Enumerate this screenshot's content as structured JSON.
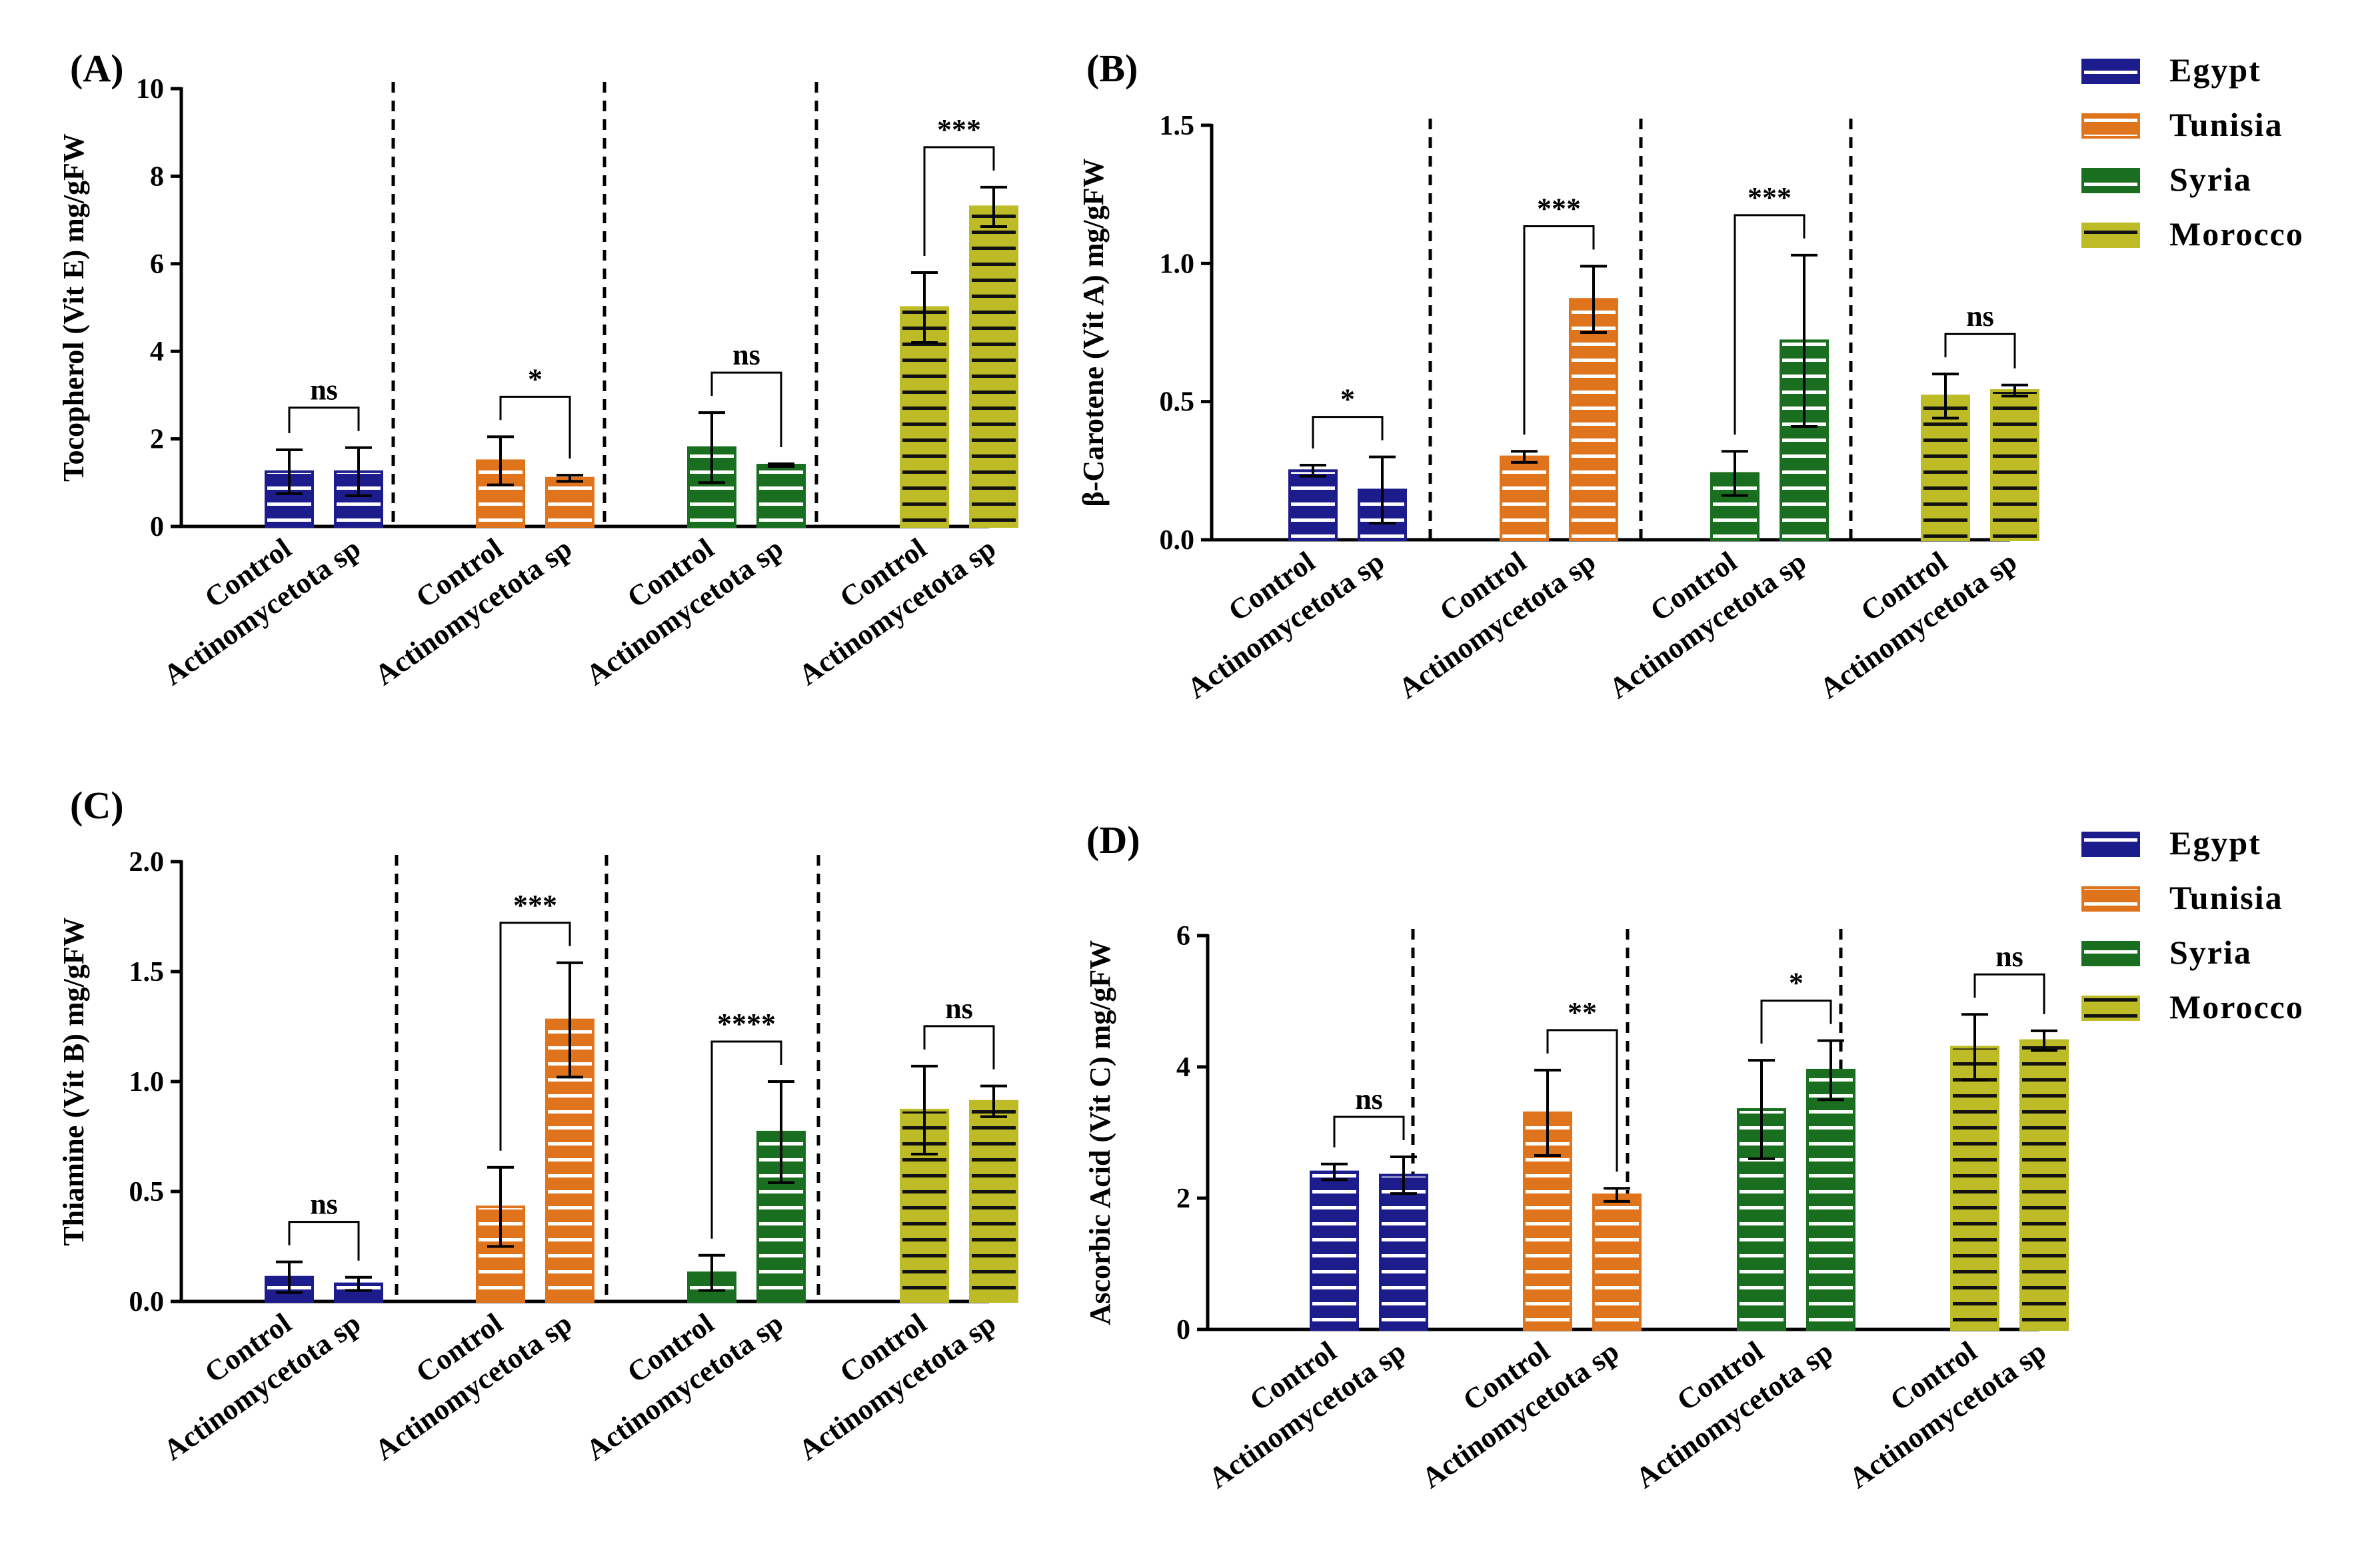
{
  "figure": {
    "group_labels": [
      "Control",
      "Actinomycetota sp"
    ],
    "countries": [
      {
        "name": "Egypt",
        "color": "#1c1c8c",
        "pattern": "stripes-white"
      },
      {
        "name": "Tunisia",
        "color": "#e0741c",
        "pattern": "stripes-white"
      },
      {
        "name": "Syria",
        "color": "#1a6e1f",
        "pattern": "stripes-white"
      },
      {
        "name": "Morocco",
        "color": "#bdbb26",
        "pattern": "stripes-black"
      }
    ]
  },
  "legends": [
    {
      "items": [
        "Egypt",
        "Tunisia",
        "Syria",
        "Morocco"
      ]
    },
    {
      "items": [
        "Egypt",
        "Tunisia",
        "Syria",
        "Morocco"
      ]
    }
  ],
  "chart_data": [
    {
      "type": "bar",
      "panel": "(A)",
      "ylabel": "Tocopherol (Vit E) mg/gFW",
      "ylim": [
        0,
        10
      ],
      "yticks": [
        0,
        2,
        4,
        6,
        8,
        10
      ],
      "ytick_labels": [
        "0",
        "2",
        "4",
        "6",
        "8",
        "10"
      ],
      "categories": [
        "Control",
        "Actinomycetota sp"
      ],
      "series": [
        {
          "name": "Egypt",
          "values": [
            1.25,
            1.25
          ],
          "errors": [
            0.5,
            0.55
          ],
          "significance": "ns"
        },
        {
          "name": "Tunisia",
          "values": [
            1.5,
            1.1
          ],
          "errors": [
            0.55,
            0.07
          ],
          "significance": "*"
        },
        {
          "name": "Syria",
          "values": [
            1.8,
            1.4
          ],
          "errors": [
            0.8,
            0.03
          ],
          "significance": "ns"
        },
        {
          "name": "Morocco",
          "values": [
            5.0,
            7.3
          ],
          "errors": [
            0.8,
            0.45
          ],
          "significance": "***"
        }
      ]
    },
    {
      "type": "bar",
      "panel": "(B)",
      "ylabel": "β-Carotene (Vit A) mg/gFW",
      "ylim": [
        0,
        1.5
      ],
      "yticks": [
        0,
        0.5,
        1.0,
        1.5
      ],
      "ytick_labels": [
        "0.0",
        "0.5",
        "1.0",
        "1.5"
      ],
      "categories": [
        "Control",
        "Actinomycetota sp"
      ],
      "series": [
        {
          "name": "Egypt",
          "values": [
            0.25,
            0.18
          ],
          "errors": [
            0.02,
            0.12
          ],
          "significance": "*"
        },
        {
          "name": "Tunisia",
          "values": [
            0.3,
            0.87
          ],
          "errors": [
            0.02,
            0.12
          ],
          "significance": "***"
        },
        {
          "name": "Syria",
          "values": [
            0.24,
            0.72
          ],
          "errors": [
            0.08,
            0.31
          ],
          "significance": "***"
        },
        {
          "name": "Morocco",
          "values": [
            0.52,
            0.54
          ],
          "errors": [
            0.08,
            0.02
          ],
          "significance": "ns"
        }
      ]
    },
    {
      "type": "bar",
      "panel": "(C)",
      "ylabel": "Thiamine (Vit B) mg/gFW",
      "ylim": [
        0,
        2.0
      ],
      "yticks": [
        0,
        0.5,
        1.0,
        1.5,
        2.0
      ],
      "ytick_labels": [
        "0.0",
        "0.5",
        "1.0",
        "1.5",
        "2.0"
      ],
      "categories": [
        "Control",
        "Actinomycetota sp"
      ],
      "series": [
        {
          "name": "Egypt",
          "values": [
            0.11,
            0.08
          ],
          "errors": [
            0.07,
            0.03
          ],
          "significance": "ns"
        },
        {
          "name": "Tunisia",
          "values": [
            0.43,
            1.28
          ],
          "errors": [
            0.18,
            0.26
          ],
          "significance": "***"
        },
        {
          "name": "Syria",
          "values": [
            0.13,
            0.77
          ],
          "errors": [
            0.08,
            0.23
          ],
          "significance": "****"
        },
        {
          "name": "Morocco",
          "values": [
            0.87,
            0.91
          ],
          "errors": [
            0.2,
            0.07
          ],
          "significance": "ns"
        }
      ]
    },
    {
      "type": "bar",
      "panel": "(D)",
      "ylabel": "Ascorbic Acid (Vit C) mg/gFW",
      "ylim": [
        0,
        6
      ],
      "yticks": [
        0,
        2,
        4,
        6
      ],
      "ytick_labels": [
        "0",
        "2",
        "4",
        "6"
      ],
      "categories": [
        "Control",
        "Actinomycetota sp"
      ],
      "series": [
        {
          "name": "Egypt",
          "values": [
            2.4,
            2.35
          ],
          "errors": [
            0.12,
            0.28
          ],
          "significance": "ns"
        },
        {
          "name": "Tunisia",
          "values": [
            3.3,
            2.05
          ],
          "errors": [
            0.65,
            0.1
          ],
          "significance": "**"
        },
        {
          "name": "Syria",
          "values": [
            3.35,
            3.95
          ],
          "errors": [
            0.75,
            0.45
          ],
          "significance": "*"
        },
        {
          "name": "Morocco",
          "values": [
            4.3,
            4.4
          ],
          "errors": [
            0.5,
            0.15
          ],
          "significance": "ns"
        }
      ]
    }
  ]
}
